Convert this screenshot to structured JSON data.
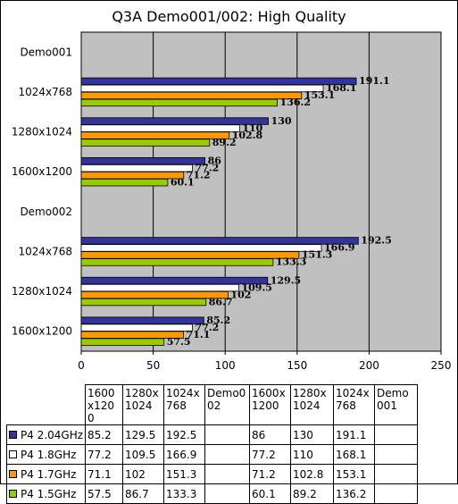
{
  "chart_data": {
    "type": "bar",
    "orientation": "horizontal",
    "title": "Q3A Demo001/002: High Quality",
    "categories": [
      "Demo001",
      "1024x768",
      "1280x1024",
      "1600x1200",
      "Demo002",
      "1024x768",
      "1280x1024",
      "1600x1200"
    ],
    "xlim": [
      0,
      250
    ],
    "xticks": [
      0,
      50,
      100,
      150,
      200,
      250
    ],
    "grid": true,
    "series": [
      {
        "name": "P4 2.04GHz",
        "color": "#333399",
        "values": [
          null,
          191.1,
          130,
          86,
          null,
          192.5,
          129.5,
          85.2
        ],
        "labels": [
          "",
          "191.1",
          "130",
          "86",
          "",
          "192.5",
          "129.5",
          "85.2"
        ]
      },
      {
        "name": "P4 1.8GHz",
        "color": "#ffffff",
        "values": [
          null,
          168.1,
          110,
          77.2,
          null,
          166.9,
          109.5,
          77.2
        ],
        "labels": [
          "",
          "168.1",
          "110",
          "77.2",
          "",
          "166.9",
          "109.5",
          "77.2"
        ]
      },
      {
        "name": "P4 1.7GHz",
        "color": "#ff9900",
        "values": [
          null,
          153.1,
          102.8,
          71.2,
          null,
          151.3,
          102,
          71.1
        ],
        "labels": [
          "",
          "153.1",
          "102.8",
          "71.2",
          "",
          "151.3",
          "102",
          "71.1"
        ]
      },
      {
        "name": "P4 1.5GHz",
        "color": "#99cc00",
        "values": [
          null,
          136.2,
          89.2,
          60.1,
          null,
          133.3,
          86.7,
          57.5
        ],
        "labels": [
          "",
          "136.2",
          "89.2",
          "60.1",
          "",
          "133.3",
          "86.7",
          "57.5"
        ]
      }
    ],
    "table": {
      "columns": [
        "1600x1200",
        "1280x1024",
        "1024x768",
        "Demo002",
        "1600x1200",
        "1280x1024",
        "1024x768",
        "Demo001"
      ],
      "rows": [
        {
          "series": "P4 2.04GHz",
          "cells": [
            "85.2",
            "129.5",
            "192.5",
            "",
            "86",
            "130",
            "191.1",
            ""
          ]
        },
        {
          "series": "P4 1.8GHz",
          "cells": [
            "77.2",
            "109.5",
            "166.9",
            "",
            "77.2",
            "110",
            "168.1",
            ""
          ]
        },
        {
          "series": "P4 1.7GHz",
          "cells": [
            "71.1",
            "102",
            "151.3",
            "",
            "71.2",
            "102.8",
            "153.1",
            ""
          ]
        },
        {
          "series": "P4 1.5GHz",
          "cells": [
            "57.5",
            "86.7",
            "133.3",
            "",
            "60.1",
            "89.2",
            "136.2",
            ""
          ]
        }
      ]
    }
  },
  "colors": {
    "plot_background": "#c0c0c0",
    "gridline": "#000000"
  }
}
